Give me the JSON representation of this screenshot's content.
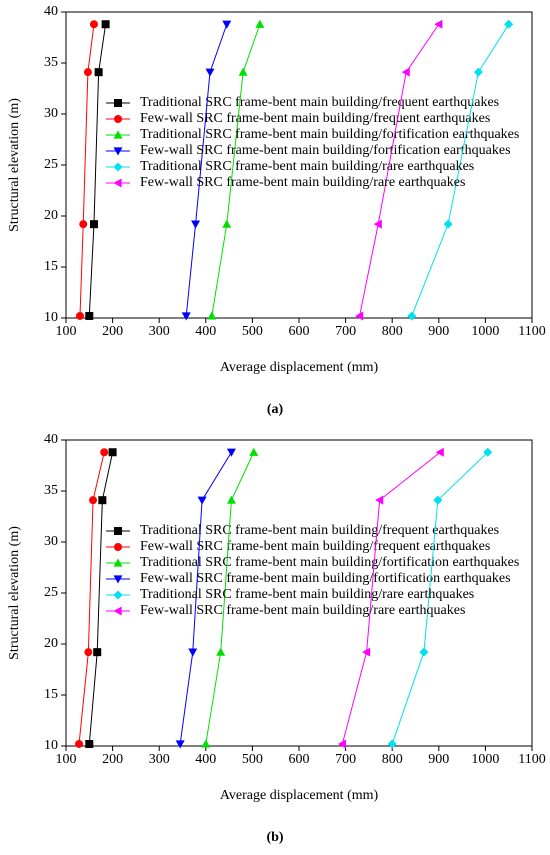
{
  "chart_data": [
    {
      "type": "line",
      "caption": "(a)",
      "xlabel": "Average displacement (mm)",
      "ylabel": "Structural elevation (m)",
      "xlim": [
        100,
        1100
      ],
      "xticks": [
        100,
        200,
        300,
        400,
        500,
        600,
        700,
        800,
        900,
        1000,
        1100
      ],
      "ylim": [
        10,
        40
      ],
      "yticks": [
        10,
        15,
        20,
        25,
        30,
        35,
        40
      ],
      "series": [
        {
          "name": "Traditional SRC frame-bent main building/frequent earthquakes",
          "color": "#000000",
          "marker": "square",
          "x": [
            150,
            160,
            170,
            185
          ],
          "values": [
            10.2,
            19.2,
            34.1,
            38.8
          ]
        },
        {
          "name": "Few-wall SRC frame-bent main building/frequent earthquakes",
          "color": "#ff0000",
          "marker": "circle",
          "x": [
            130,
            137,
            147,
            160
          ],
          "values": [
            10.2,
            19.2,
            34.1,
            38.8
          ]
        },
        {
          "name": "Traditional SRC frame-bent main building/fortification earthquakes",
          "color": "#00e000",
          "marker": "triangle-up",
          "x": [
            413,
            445,
            480,
            516
          ],
          "values": [
            10.2,
            19.2,
            34.1,
            38.8
          ]
        },
        {
          "name": "Few-wall SRC frame-bent main building/fortification earthquakes",
          "color": "#0000ff",
          "marker": "triangle-down",
          "x": [
            358,
            378,
            409,
            445
          ],
          "values": [
            10.2,
            19.2,
            34.1,
            38.8
          ]
        },
        {
          "name": "Traditional SRC frame-bent main building/rare earthquakes",
          "color": "#00e0f0",
          "marker": "diamond",
          "x": [
            842,
            920,
            985,
            1050
          ],
          "values": [
            10.2,
            19.2,
            34.1,
            38.8
          ]
        },
        {
          "name": "Few-wall SRC frame-bent main building/rare earthquakes",
          "color": "#ff00ff",
          "marker": "triangle-left",
          "x": [
            730,
            770,
            830,
            900
          ],
          "values": [
            10.2,
            19.2,
            34.1,
            38.8
          ]
        }
      ]
    },
    {
      "type": "line",
      "caption": "(b)",
      "xlabel": "Average displacement (mm)",
      "ylabel": "Structural elevation (m)",
      "xlim": [
        100,
        1100
      ],
      "xticks": [
        100,
        200,
        300,
        400,
        500,
        600,
        700,
        800,
        900,
        1000,
        1100
      ],
      "ylim": [
        10,
        40
      ],
      "yticks": [
        10,
        15,
        20,
        25,
        30,
        35,
        40
      ],
      "series": [
        {
          "name": "Traditional SRC frame-bent main building/frequent earthquakes",
          "color": "#000000",
          "marker": "square",
          "x": [
            150,
            167,
            178,
            200
          ],
          "values": [
            10.2,
            19.2,
            34.1,
            38.8
          ]
        },
        {
          "name": "Few-wall SRC frame-bent main building/frequent earthquakes",
          "color": "#ff0000",
          "marker": "circle",
          "x": [
            128,
            148,
            158,
            182
          ],
          "values": [
            10.2,
            19.2,
            34.1,
            38.8
          ]
        },
        {
          "name": "Traditional SRC frame-bent main building/fortification earthquakes",
          "color": "#00e000",
          "marker": "triangle-up",
          "x": [
            400,
            432,
            455,
            503
          ],
          "values": [
            10.2,
            19.2,
            34.1,
            38.8
          ]
        },
        {
          "name": "Few-wall SRC frame-bent main building/fortification earthquakes",
          "color": "#0000ff",
          "marker": "triangle-down",
          "x": [
            345,
            372,
            392,
            455
          ],
          "values": [
            10.2,
            19.2,
            34.1,
            38.8
          ]
        },
        {
          "name": "Traditional SRC frame-bent main building/rare earthquakes",
          "color": "#00e0f0",
          "marker": "diamond",
          "x": [
            800,
            868,
            898,
            1005
          ],
          "values": [
            10.2,
            19.2,
            34.1,
            38.8
          ]
        },
        {
          "name": "Few-wall SRC frame-bent main building/rare earthquakes",
          "color": "#ff00ff",
          "marker": "triangle-left",
          "x": [
            693,
            745,
            773,
            903
          ],
          "values": [
            10.2,
            19.2,
            34.1,
            38.8
          ]
        }
      ]
    }
  ]
}
